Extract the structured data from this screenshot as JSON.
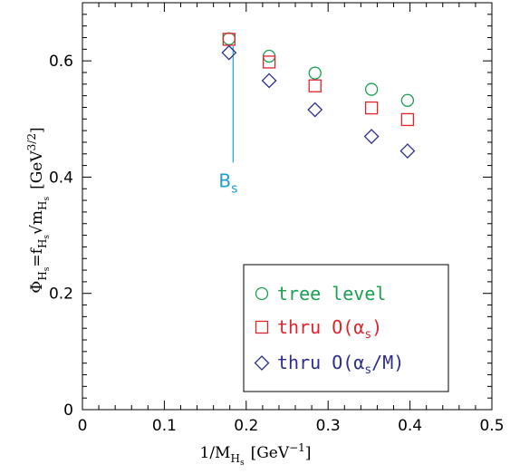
{
  "chart_data": {
    "type": "scatter",
    "xlabel": "1/M_{H_s} [GeV^{-1}]",
    "xlabel_parts": {
      "main": "1/M",
      "sub1": "H",
      "sub2": "s",
      "unit_pre": "[GeV",
      "unit_sup": "−1",
      "unit_post": "]"
    },
    "ylabel": "Φ_{H_s} = f_{H_s} √m_{H_s} [GeV^{3/2}]",
    "ylabel_parts": {
      "phi": "Φ",
      "phi_sub": "H",
      "phi_subsub": "s",
      "eq": "=f",
      "f_sub": "H",
      "f_subsub": "s",
      "sqrt": "√m",
      "m_sub": "H",
      "m_subsub": "s",
      "unit_pre": "[GeV",
      "unit_sup": "3/2",
      "unit_post": "]"
    },
    "xlim": [
      0,
      0.5
    ],
    "ylim": [
      0,
      0.7
    ],
    "xticks": [
      0,
      0.1,
      0.2,
      0.3,
      0.4,
      0.5
    ],
    "yticks": [
      0,
      0.2,
      0.4,
      0.6
    ],
    "xtick_labels": [
      "0",
      "0.1",
      "0.2",
      "0.3",
      "0.4",
      "0.5"
    ],
    "ytick_labels": [
      "0",
      "0.2",
      "0.4",
      "0.6"
    ],
    "grid": false,
    "legend_placement": "bottom-right",
    "series": [
      {
        "name": "tree level",
        "marker": "circle",
        "color": "#1aa050",
        "x": [
          0.179,
          0.228,
          0.284,
          0.353,
          0.397
        ],
        "y": [
          0.638,
          0.608,
          0.579,
          0.551,
          0.532
        ]
      },
      {
        "name": "thru O(α_s)",
        "marker": "square",
        "color": "#e0242c",
        "x": [
          0.179,
          0.228,
          0.284,
          0.353,
          0.397
        ],
        "y": [
          0.637,
          0.598,
          0.557,
          0.519,
          0.499
        ]
      },
      {
        "name": "thru O(α_s/M)",
        "marker": "diamond",
        "color": "#2b2d8f",
        "x": [
          0.179,
          0.228,
          0.284,
          0.353,
          0.397
        ],
        "y": [
          0.614,
          0.566,
          0.516,
          0.47,
          0.445
        ]
      }
    ],
    "legend_labels": [
      {
        "pre": "tree level",
        "sub": "",
        "post": ""
      },
      {
        "pre": "thru O(α",
        "sub": "s",
        "post": ")"
      },
      {
        "pre": "thru O(α",
        "sub": "s",
        "post": "/M)"
      }
    ],
    "annotation": {
      "text": "B",
      "sub": "s",
      "color": "#1a9fd6",
      "x": 0.184,
      "y_top": 0.625,
      "y_bottom": 0.425
    }
  }
}
